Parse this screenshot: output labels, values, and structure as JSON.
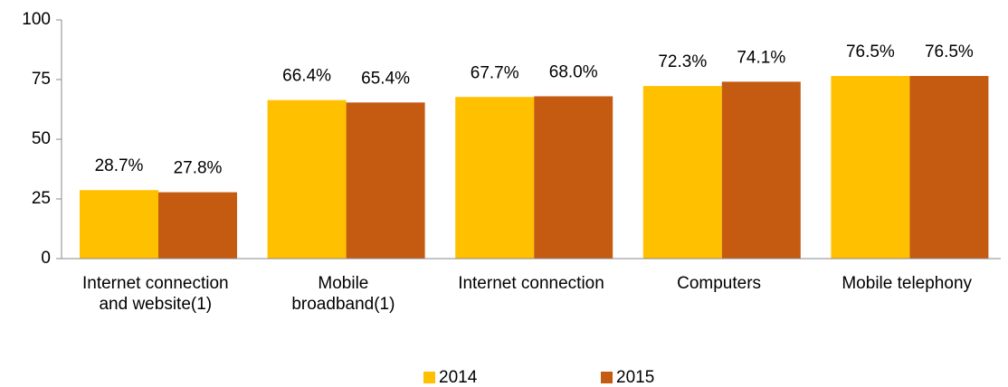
{
  "chart_data": {
    "type": "bar",
    "categories": [
      "Internet connection\nand website(1)",
      "Mobile\nbroadband(1)",
      "Internet connection",
      "Computers",
      "Mobile telephony"
    ],
    "series": [
      {
        "name": "2014",
        "color": "#FFC000",
        "values": [
          28.7,
          66.4,
          67.7,
          72.3,
          76.5
        ],
        "value_labels": [
          "28.7%",
          "66.4%",
          "67.7%",
          "72.3%",
          "76.5%"
        ]
      },
      {
        "name": "2015",
        "color": "#C55A11",
        "values": [
          27.8,
          65.4,
          68.0,
          74.1,
          76.5
        ],
        "value_labels": [
          "27.8%",
          "65.4%",
          "68.0%",
          "74.1%",
          "76.5%"
        ]
      }
    ],
    "ylim": [
      0,
      100
    ],
    "yticks": [
      0,
      25,
      50,
      75,
      100
    ],
    "grid": false,
    "legend": "bottom"
  }
}
